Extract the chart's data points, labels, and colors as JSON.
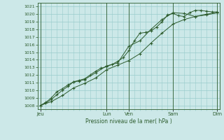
{
  "title": "",
  "xlabel": "Pression niveau de la mer( hPa )",
  "ylim": [
    1007.5,
    1021.5
  ],
  "yticks": [
    1008,
    1009,
    1010,
    1011,
    1012,
    1013,
    1014,
    1015,
    1016,
    1017,
    1018,
    1019,
    1020,
    1021
  ],
  "bg_color": "#cce8e8",
  "grid_color": "#99cccc",
  "line_color": "#2d5c2d",
  "day_labels": [
    "Jeu",
    "Lun",
    "Ven",
    "Sam",
    "Dim"
  ],
  "day_positions": [
    0,
    3.0,
    4.0,
    6.0,
    8.0
  ],
  "xlim": [
    -0.1,
    8.1
  ],
  "series1_x": [
    0,
    0.25,
    0.5,
    0.75,
    1.0,
    1.25,
    1.5,
    1.75,
    2.0,
    2.25,
    2.5,
    2.75,
    3.0,
    3.25,
    3.5,
    3.75,
    4.0,
    4.25,
    4.5,
    4.75,
    5.0,
    5.25,
    5.5,
    5.75,
    6.0,
    6.25,
    6.5,
    6.75,
    7.0,
    7.25,
    7.5,
    7.75,
    8.0
  ],
  "series1_y": [
    1008,
    1008.4,
    1009.0,
    1009.8,
    1010.2,
    1010.7,
    1011.1,
    1011.3,
    1011.5,
    1012.0,
    1012.5,
    1012.9,
    1013.1,
    1013.4,
    1013.8,
    1014.3,
    1015.2,
    1016.5,
    1017.5,
    1017.6,
    1017.8,
    1018.3,
    1019.0,
    1019.9,
    1020.1,
    1019.8,
    1019.7,
    1020.2,
    1020.5,
    1020.5,
    1020.4,
    1020.3,
    1020.3
  ],
  "series2_x": [
    0,
    0.25,
    0.5,
    0.75,
    1.0,
    1.25,
    1.5,
    1.75,
    2.0,
    2.5,
    3.0,
    3.5,
    4.0,
    4.5,
    5.0,
    5.5,
    6.0,
    6.5,
    7.0,
    7.5,
    8.0
  ],
  "series2_y": [
    1008,
    1008.3,
    1008.8,
    1009.4,
    1010.0,
    1010.5,
    1011.1,
    1011.2,
    1011.4,
    1012.3,
    1013.2,
    1013.6,
    1015.8,
    1016.5,
    1018.0,
    1019.3,
    1020.2,
    1020.1,
    1019.7,
    1019.9,
    1020.2
  ],
  "series3_x": [
    0,
    0.5,
    1.0,
    1.5,
    2.0,
    2.5,
    3.0,
    3.5,
    4.0,
    4.5,
    5.0,
    5.5,
    6.0,
    6.5,
    7.0,
    7.5,
    8.0
  ],
  "series3_y": [
    1008,
    1008.5,
    1009.3,
    1010.3,
    1010.9,
    1011.6,
    1012.7,
    1013.3,
    1013.9,
    1014.8,
    1016.2,
    1017.5,
    1018.7,
    1019.3,
    1019.7,
    1020.0,
    1020.2
  ]
}
